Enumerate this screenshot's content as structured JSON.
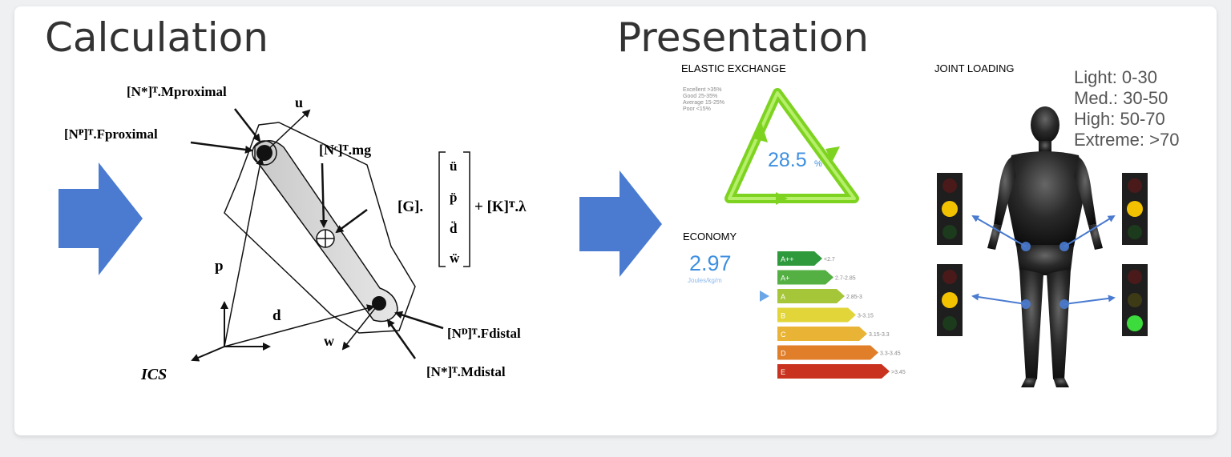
{
  "headings": {
    "calculation": "Calculation",
    "presentation": "Presentation"
  },
  "calc_diagram": {
    "m_proximal": "[N*]ᵀ.Mproximal",
    "f_proximal": "[Nᴾ]ᵀ.Fproximal",
    "u": "u",
    "mg": "[Nᶜ]ᵀ.mg",
    "g_term": "[G].",
    "k_term": "+ [K]ᵀ.λ",
    "matrix": [
      "ü",
      "p̈",
      "d̈",
      "ẅ"
    ],
    "p": "p",
    "d": "d",
    "w": "w",
    "ics": "ICS",
    "f_distal": "[Nᴰ]ᵀ.Fdistal",
    "m_distal": "[N*]ᵀ.Mdistal"
  },
  "elastic": {
    "title": "ELASTIC EXCHANGE",
    "value": "28.5",
    "unit": "%",
    "legend": [
      "Excellent  >35%",
      "Good  25-35%",
      "Average  15-25%",
      "Poor  <15%"
    ]
  },
  "economy": {
    "title": "ECONOMY",
    "value": "2.97",
    "unit": "Joules/kg/m",
    "bars": [
      {
        "grade": "A++",
        "range": "<2.7",
        "color": "#2e9a3c"
      },
      {
        "grade": "A+",
        "range": "2.7-2.85",
        "color": "#55b043"
      },
      {
        "grade": "A",
        "range": "2.85-3",
        "color": "#a6c63a"
      },
      {
        "grade": "B",
        "range": "3-3.15",
        "color": "#e2d53a"
      },
      {
        "grade": "C",
        "range": "3.15-3.3",
        "color": "#e9b335"
      },
      {
        "grade": "D",
        "range": "3.3-3.45",
        "color": "#e07e2a"
      },
      {
        "grade": "E",
        "range": ">3.45",
        "color": "#c8321e"
      }
    ],
    "selected_index": 2
  },
  "joint": {
    "title": "JOINT LOADING",
    "legend": [
      "Light: 0-30",
      "Med.: 30-50",
      "High: 50-70",
      "Extreme: >70"
    ],
    "traffic_lights": [
      {
        "position": "upper-left",
        "lit": "yellow"
      },
      {
        "position": "upper-right",
        "lit": "yellow"
      },
      {
        "position": "lower-left",
        "lit": "yellow"
      },
      {
        "position": "lower-right",
        "lit": "green"
      }
    ]
  },
  "colors": {
    "arrow": "#4a7bd0",
    "triangle": "#7ed321",
    "value_blue": "#3d8fe0",
    "silhouette": "#1c1c1c"
  }
}
